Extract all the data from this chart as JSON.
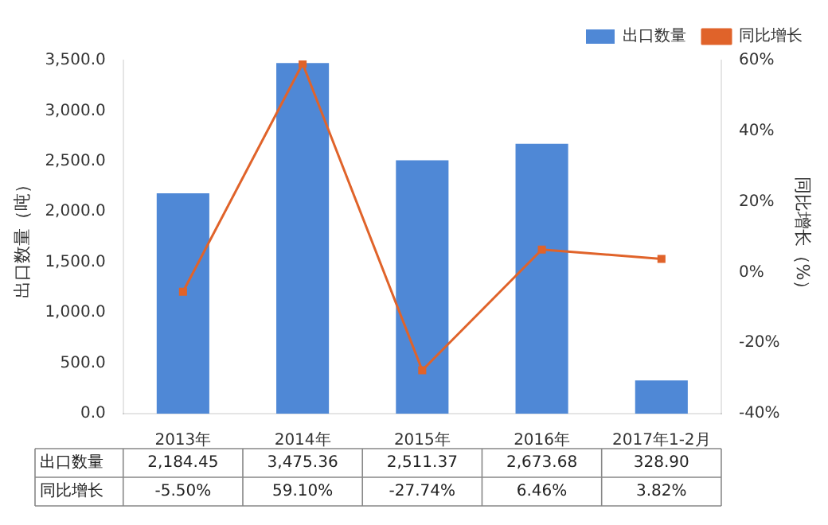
{
  "chart_data": {
    "type": "bar",
    "categories": [
      "2013年",
      "2014年",
      "2015年",
      "2016年",
      "2017年1-2月"
    ],
    "ylabel": "出口数量（吨）",
    "y2label": "同比增长（%）",
    "series": [
      {
        "name": "出口数量",
        "color": "#4f88d6",
        "values": [
          2184.45,
          3475.36,
          2511.37,
          2673.68,
          328.9
        ],
        "value_labels": [
          "2,184.45",
          "3,475.36",
          "2,511.37",
          "2,673.68",
          "328.90"
        ]
      },
      {
        "name": "同比增长",
        "type": "line",
        "axis": "y2",
        "color": "#e0632a",
        "values": [
          -5.5,
          59.1,
          -27.74,
          6.46,
          3.82
        ],
        "value_labels": [
          "-5.50%",
          "59.10%",
          "-27.74%",
          "6.46%",
          "3.82%"
        ]
      }
    ],
    "ylim": [
      0,
      3500
    ],
    "yticks": [
      {
        "value": 0,
        "label": "0.0"
      },
      {
        "value": 500,
        "label": "500.0"
      },
      {
        "value": 1000,
        "label": "1,000.0"
      },
      {
        "value": 1500,
        "label": "1,500.0"
      },
      {
        "value": 2000,
        "label": "2,000.0"
      },
      {
        "value": 2500,
        "label": "2,500.0"
      },
      {
        "value": 3000,
        "label": "3,000.0"
      },
      {
        "value": 3500,
        "label": "3,500.0"
      }
    ],
    "y2lim": [
      -40,
      60
    ],
    "y2ticks": [
      {
        "value": -40,
        "label": "-40%"
      },
      {
        "value": -20,
        "label": "-20%"
      },
      {
        "value": 0,
        "label": "0%"
      },
      {
        "value": 20,
        "label": "20%"
      },
      {
        "value": 40,
        "label": "40%"
      },
      {
        "value": 60,
        "label": "60%"
      }
    ],
    "legend": "top right",
    "marker": "square",
    "line_style": "solid",
    "grid": false
  }
}
